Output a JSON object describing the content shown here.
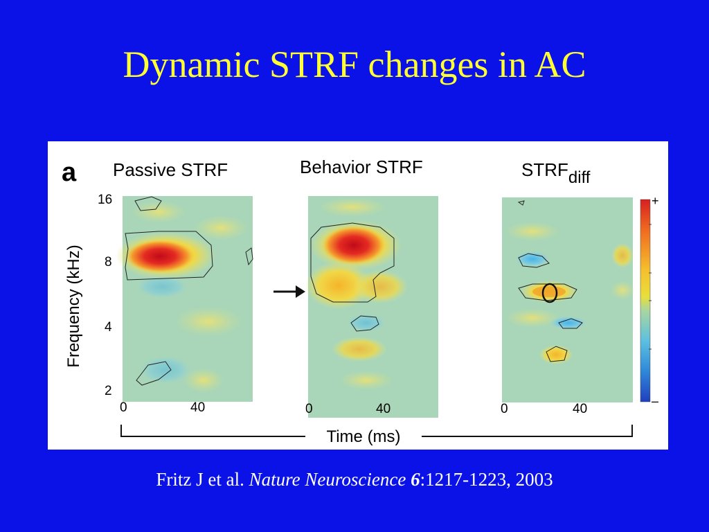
{
  "slide": {
    "title": "Dynamic STRF changes in AC",
    "colors": {
      "background": "#0a12e8",
      "title": "#ffff33",
      "citation": "#ffffff"
    }
  },
  "figure": {
    "panel_letter": "a",
    "panels": [
      {
        "title": "Passive STRF",
        "tick_left": "0",
        "tick_right": "40"
      },
      {
        "title": "Behavior STRF",
        "tick_left": "0",
        "tick_right": "40"
      },
      {
        "title_main": "STRF",
        "title_sub": "diff",
        "tick_left": "0",
        "tick_right": "40"
      }
    ],
    "y_axis": {
      "label": "Frequency (kHz)",
      "ticks": [
        "16",
        "8",
        "4",
        "2"
      ]
    },
    "x_axis": {
      "label": "Time (ms)"
    },
    "colorbar": {
      "max_label": "+",
      "min_label": "–",
      "colors": [
        "#d62020",
        "#f06a20",
        "#f5b52a",
        "#e8df3a",
        "#a8d6a0",
        "#5cc0e0",
        "#2f88d8",
        "#1f3fbf"
      ]
    },
    "heatmap_colors": {
      "background": "#a9d6b8",
      "strong_positive": "#d4141e",
      "positive": "#f5c02e",
      "weak_positive": "#e6e07a",
      "negative": "#6cc6e4"
    }
  },
  "citation": {
    "authors": "Fritz J et al. ",
    "journal": "Nature Neuroscience",
    "volume": " 6",
    "pages": ":1217-1223, 2003"
  }
}
